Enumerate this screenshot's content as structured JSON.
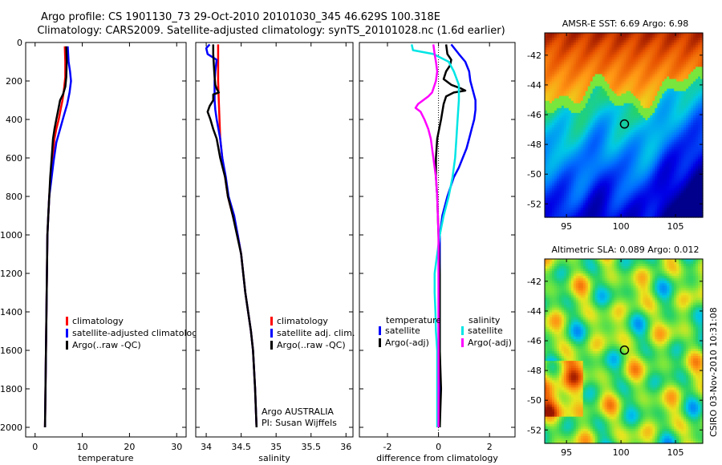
{
  "header": {
    "line1": "Argo profile: CS 1901130_73 29-Oct-2010 20101030_345 46.629S 100.318E",
    "line2": "Climatology: CARS2009. Satellite-adjusted climatology: synTS_20101028.nc (1.6d earlier)"
  },
  "side_credit": "CSIRO 03-Nov-2010 10:31:08",
  "colors": {
    "climatology": "#ff0000",
    "satellite": "#0000ff",
    "argo": "#000000",
    "satellite_sal": "#00e5e5",
    "argo_sal": "#ff00ff"
  },
  "chart_data": [
    {
      "id": "temperature",
      "type": "line",
      "xlabel": "temperature",
      "xlim": [
        -2,
        32
      ],
      "xticks": [
        "0",
        "10",
        "20",
        "30"
      ],
      "xtick_values": [
        0,
        10,
        20,
        30
      ],
      "ylim": [
        0,
        2050
      ],
      "yticks": [
        "0",
        "200",
        "400",
        "600",
        "800",
        "1000",
        "1200",
        "1400",
        "1600",
        "1800",
        "2000"
      ],
      "ytick_values": [
        0,
        200,
        400,
        600,
        800,
        1000,
        1200,
        1400,
        1600,
        1800,
        2000
      ],
      "legend": [
        "climatology",
        "satellite-adjusted climatolog",
        "Argo(..raw -QC)"
      ],
      "series": [
        {
          "name": "climatology",
          "color": "#ff0000",
          "points": [
            [
              6.3,
              20
            ],
            [
              6.4,
              100
            ],
            [
              6.4,
              180
            ],
            [
              6.1,
              250
            ],
            [
              5.8,
              300
            ],
            [
              5.4,
              350
            ],
            [
              5.0,
              400
            ],
            [
              4.5,
              450
            ],
            [
              4.1,
              500
            ],
            [
              3.7,
              600
            ],
            [
              3.3,
              700
            ],
            [
              3.0,
              800
            ],
            [
              2.8,
              900
            ],
            [
              2.6,
              1000
            ],
            [
              2.5,
              1200
            ],
            [
              2.4,
              1400
            ],
            [
              2.3,
              1600
            ],
            [
              2.2,
              1800
            ],
            [
              2.1,
              2000
            ]
          ]
        },
        {
          "name": "satellite-adjusted climatology",
          "color": "#0000ff",
          "points": [
            [
              6.9,
              20
            ],
            [
              7.1,
              100
            ],
            [
              7.4,
              150
            ],
            [
              7.6,
              200
            ],
            [
              7.3,
              260
            ],
            [
              6.8,
              320
            ],
            [
              6.1,
              380
            ],
            [
              5.3,
              450
            ],
            [
              4.5,
              520
            ],
            [
              3.9,
              620
            ],
            [
              3.4,
              720
            ],
            [
              3.0,
              800
            ],
            [
              2.8,
              900
            ],
            [
              2.6,
              1000
            ],
            [
              2.5,
              1200
            ],
            [
              2.4,
              1400
            ],
            [
              2.3,
              1600
            ],
            [
              2.2,
              1800
            ],
            [
              2.1,
              2000
            ]
          ]
        },
        {
          "name": "Argo(..raw -QC)",
          "color": "#000000",
          "points": [
            [
              6.6,
              20
            ],
            [
              6.7,
              100
            ],
            [
              6.6,
              180
            ],
            [
              6.4,
              230
            ],
            [
              5.9,
              270
            ],
            [
              5.3,
              300
            ],
            [
              4.9,
              350
            ],
            [
              4.5,
              400
            ],
            [
              4.1,
              450
            ],
            [
              3.8,
              500
            ],
            [
              3.5,
              600
            ],
            [
              3.2,
              700
            ],
            [
              3.0,
              800
            ],
            [
              2.8,
              900
            ],
            [
              2.6,
              1000
            ],
            [
              2.5,
              1200
            ],
            [
              2.4,
              1400
            ],
            [
              2.3,
              1600
            ],
            [
              2.2,
              1800
            ],
            [
              2.1,
              2000
            ]
          ]
        }
      ]
    },
    {
      "id": "salinity",
      "type": "line",
      "xlabel": "salinity",
      "xlim": [
        33.85,
        36.1
      ],
      "xticks": [
        "34",
        "34.5",
        "35",
        "35.5",
        "36"
      ],
      "xtick_values": [
        34,
        34.5,
        35,
        35.5,
        36
      ],
      "ylim": [
        0,
        2050
      ],
      "legend": [
        "climatology",
        "satellite adj. clim.",
        "Argo(..raw -QC)"
      ],
      "annotation": [
        "Argo AUSTRALIA",
        "PI: Susan Wijffels"
      ],
      "series": [
        {
          "name": "climatology",
          "color": "#ff0000",
          "points": [
            [
              34.17,
              10
            ],
            [
              34.17,
              100
            ],
            [
              34.17,
              200
            ],
            [
              34.18,
              300
            ],
            [
              34.19,
              400
            ],
            [
              34.2,
              500
            ],
            [
              34.23,
              600
            ],
            [
              34.27,
              700
            ],
            [
              34.31,
              800
            ],
            [
              34.38,
              900
            ],
            [
              34.45,
              1000
            ],
            [
              34.5,
              1100
            ],
            [
              34.53,
              1200
            ],
            [
              34.56,
              1300
            ],
            [
              34.6,
              1400
            ],
            [
              34.64,
              1500
            ],
            [
              34.67,
              1600
            ],
            [
              34.7,
              1800
            ],
            [
              34.72,
              2000
            ]
          ]
        },
        {
          "name": "satellite adj. clim.",
          "color": "#0000ff",
          "points": [
            [
              34.05,
              10
            ],
            [
              34.0,
              30
            ],
            [
              34.02,
              60
            ],
            [
              34.15,
              90
            ],
            [
              34.13,
              150
            ],
            [
              34.12,
              200
            ],
            [
              34.12,
              260
            ],
            [
              34.12,
              300
            ],
            [
              34.13,
              350
            ],
            [
              34.15,
              400
            ],
            [
              34.2,
              500
            ],
            [
              34.23,
              600
            ],
            [
              34.28,
              700
            ],
            [
              34.32,
              800
            ],
            [
              34.4,
              900
            ],
            [
              34.45,
              1000
            ],
            [
              34.5,
              1100
            ],
            [
              34.53,
              1200
            ],
            [
              34.56,
              1300
            ],
            [
              34.6,
              1400
            ],
            [
              34.64,
              1500
            ],
            [
              34.67,
              1600
            ],
            [
              34.7,
              1800
            ],
            [
              34.72,
              2000
            ]
          ]
        },
        {
          "name": "Argo(..raw -QC)",
          "color": "#000000",
          "points": [
            [
              34.1,
              10
            ],
            [
              34.1,
              60
            ],
            [
              34.11,
              120
            ],
            [
              34.12,
              180
            ],
            [
              34.13,
              220
            ],
            [
              34.15,
              240
            ],
            [
              34.18,
              260
            ],
            [
              34.1,
              270
            ],
            [
              34.1,
              300
            ],
            [
              34.05,
              330
            ],
            [
              34.02,
              360
            ],
            [
              34.06,
              400
            ],
            [
              34.1,
              450
            ],
            [
              34.15,
              500
            ],
            [
              34.2,
              600
            ],
            [
              34.27,
              700
            ],
            [
              34.31,
              800
            ],
            [
              34.38,
              900
            ],
            [
              34.44,
              1000
            ],
            [
              34.5,
              1100
            ],
            [
              34.53,
              1200
            ],
            [
              34.56,
              1300
            ],
            [
              34.6,
              1400
            ],
            [
              34.64,
              1500
            ],
            [
              34.67,
              1600
            ],
            [
              34.7,
              1800
            ],
            [
              34.72,
              2000
            ]
          ]
        }
      ]
    },
    {
      "id": "difference",
      "type": "line",
      "xlabel": "difference from climatology",
      "xlim": [
        -3.1,
        3.0
      ],
      "xticks": [
        "-2",
        "0",
        "2"
      ],
      "xtick_values": [
        -2,
        0,
        2
      ],
      "ylim": [
        0,
        2050
      ],
      "legend_groups": [
        {
          "title": "temperature",
          "items": [
            "satellite",
            "Argo(-adj)"
          ]
        },
        {
          "title": "salinity",
          "items": [
            "satellite",
            "Argo(-adj)"
          ]
        }
      ],
      "series": [
        {
          "name": "temperature satellite",
          "color": "#0000ff",
          "points": [
            [
              0.5,
              10
            ],
            [
              0.8,
              60
            ],
            [
              1.05,
              100
            ],
            [
              1.2,
              150
            ],
            [
              1.25,
              200
            ],
            [
              1.35,
              250
            ],
            [
              1.45,
              300
            ],
            [
              1.45,
              350
            ],
            [
              1.4,
              400
            ],
            [
              1.3,
              450
            ],
            [
              1.2,
              500
            ],
            [
              1.1,
              550
            ],
            [
              0.95,
              600
            ],
            [
              0.8,
              650
            ],
            [
              0.6,
              700
            ],
            [
              0.35,
              800
            ],
            [
              0.15,
              900
            ],
            [
              0.05,
              1000
            ],
            [
              0.05,
              1200
            ],
            [
              0.05,
              1400
            ],
            [
              0.05,
              1600
            ],
            [
              0.05,
              1800
            ],
            [
              0.05,
              2000
            ]
          ]
        },
        {
          "name": "temperature Argo(-adj)",
          "color": "#000000",
          "points": [
            [
              0.3,
              10
            ],
            [
              0.35,
              60
            ],
            [
              0.5,
              90
            ],
            [
              0.45,
              120
            ],
            [
              0.3,
              150
            ],
            [
              0.2,
              190
            ],
            [
              0.5,
              220
            ],
            [
              0.9,
              240
            ],
            [
              1.05,
              250
            ],
            [
              0.6,
              260
            ],
            [
              0.3,
              280
            ],
            [
              0.2,
              320
            ],
            [
              0.1,
              400
            ],
            [
              -0.05,
              500
            ],
            [
              -0.1,
              600
            ],
            [
              -0.1,
              700
            ],
            [
              -0.05,
              800
            ],
            [
              0,
              1000
            ],
            [
              0.05,
              1200
            ],
            [
              0.05,
              1400
            ],
            [
              0.05,
              1600
            ],
            [
              0.1,
              1800
            ],
            [
              0.05,
              2000
            ]
          ]
        },
        {
          "name": "salinity satellite",
          "color": "#00e5e5",
          "points": [
            [
              -1.05,
              10
            ],
            [
              -1.0,
              40
            ],
            [
              -0.2,
              60
            ],
            [
              0.4,
              100
            ],
            [
              0.6,
              150
            ],
            [
              0.8,
              220
            ],
            [
              0.8,
              300
            ],
            [
              0.75,
              400
            ],
            [
              0.7,
              500
            ],
            [
              0.65,
              600
            ],
            [
              0.55,
              700
            ],
            [
              0.4,
              800
            ],
            [
              0.2,
              900
            ],
            [
              0.05,
              1000
            ],
            [
              -0.05,
              1100
            ],
            [
              -0.15,
              1200
            ],
            [
              -0.15,
              1300
            ],
            [
              -0.12,
              1400
            ],
            [
              -0.1,
              1500
            ],
            [
              -0.05,
              1600
            ],
            [
              -0.05,
              1800
            ],
            [
              -0.05,
              2000
            ]
          ]
        },
        {
          "name": "salinity Argo(-adj)",
          "color": "#ff00ff",
          "points": [
            [
              -0.2,
              10
            ],
            [
              -0.15,
              60
            ],
            [
              -0.1,
              100
            ],
            [
              -0.05,
              150
            ],
            [
              -0.1,
              200
            ],
            [
              -0.2,
              240
            ],
            [
              -0.25,
              260
            ],
            [
              -0.4,
              280
            ],
            [
              -0.6,
              300
            ],
            [
              -0.8,
              320
            ],
            [
              -0.9,
              340
            ],
            [
              -0.7,
              360
            ],
            [
              -0.55,
              400
            ],
            [
              -0.4,
              450
            ],
            [
              -0.3,
              500
            ],
            [
              -0.2,
              600
            ],
            [
              -0.1,
              700
            ],
            [
              -0.05,
              800
            ],
            [
              0,
              1000
            ],
            [
              0,
              1200
            ],
            [
              0,
              1400
            ],
            [
              0,
              1600
            ],
            [
              0,
              1800
            ],
            [
              0,
              2000
            ]
          ]
        }
      ]
    },
    {
      "id": "sst_map",
      "type": "heatmap",
      "title": "AMSR-E SST: 6.69 Argo: 6.98",
      "xlim": [
        93,
        107.5
      ],
      "ylim": [
        -52.9,
        -40.5
      ],
      "xticks": [
        "95",
        "100",
        "105"
      ],
      "xtick_values": [
        95,
        100,
        105
      ],
      "yticks": [
        "-42",
        "-44",
        "-46",
        "-48",
        "-50",
        "-52"
      ],
      "ytick_values": [
        -42,
        -44,
        -46,
        -48,
        -50,
        -52
      ],
      "marker": {
        "lon": 100.318,
        "lat": -46.629
      }
    },
    {
      "id": "sla_map",
      "type": "heatmap",
      "title": "Altimetric SLA: 0.089 Argo: 0.012",
      "xlim": [
        93,
        107.5
      ],
      "ylim": [
        -52.9,
        -40.5
      ],
      "xticks": [
        "95",
        "100",
        "105"
      ],
      "xtick_values": [
        95,
        100,
        105
      ],
      "yticks": [
        "-42",
        "-44",
        "-46",
        "-48",
        "-50",
        "-52"
      ],
      "ytick_values": [
        -42,
        -44,
        -46,
        -48,
        -50,
        -52
      ],
      "marker": {
        "lon": 100.318,
        "lat": -46.629
      }
    }
  ]
}
